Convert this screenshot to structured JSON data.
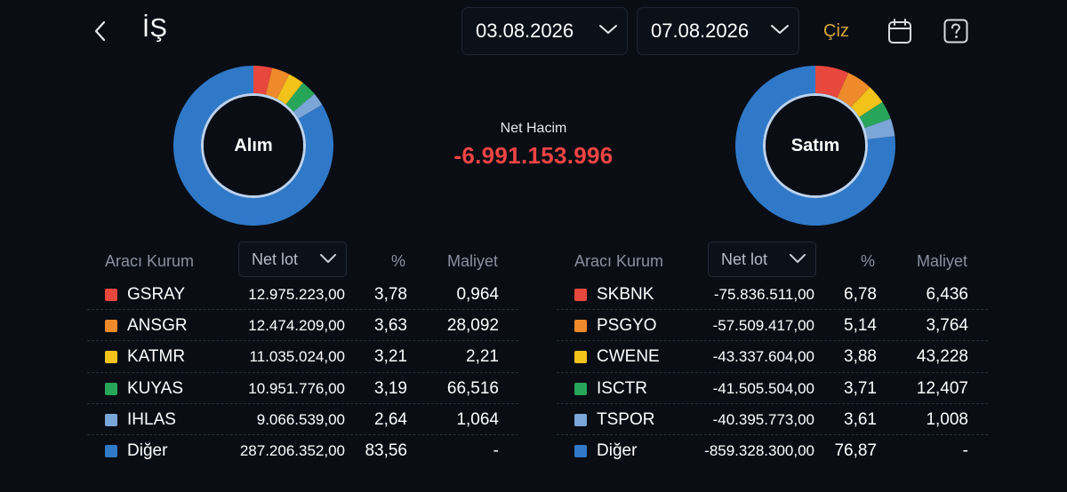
{
  "header": {
    "title": "İŞ",
    "start_date": "03.08.2026",
    "end_date": "07.08.2026",
    "draw_label": "Çiz"
  },
  "summary": {
    "net_label": "Net Hacim",
    "net_value": "-6.991.153.996"
  },
  "colors": {
    "red": "#e8473d",
    "orange": "#ee8a2a",
    "yellow": "#f3c21b",
    "green": "#27a65a",
    "lightblue": "#7aa6d8",
    "blue": "#2f79c8",
    "negative": "#ef4444",
    "accent": "#d9a53a"
  },
  "buy": {
    "donut_label": "Alım",
    "columns": {
      "broker": "Aracı Kurum",
      "lot": "Net lot",
      "pct": "%",
      "cost": "Maliyet"
    },
    "rows": [
      {
        "name": "GSRAY",
        "lot": "12.975.223,00",
        "pct": "3,78",
        "cost": "0,964",
        "color": "#e8473d",
        "share": 3.78
      },
      {
        "name": "ANSGR",
        "lot": "12.474.209,00",
        "pct": "3,63",
        "cost": "28,092",
        "color": "#ee8a2a",
        "share": 3.63
      },
      {
        "name": "KATMR",
        "lot": "11.035.024,00",
        "pct": "3,21",
        "cost": "2,21",
        "color": "#f3c21b",
        "share": 3.21
      },
      {
        "name": "KUYAS",
        "lot": "10.951.776,00",
        "pct": "3,19",
        "cost": "66,516",
        "color": "#27a65a",
        "share": 3.19
      },
      {
        "name": "IHLAS",
        "lot": "9.066.539,00",
        "pct": "2,64",
        "cost": "1,064",
        "color": "#7aa6d8",
        "share": 2.64
      },
      {
        "name": "Diğer",
        "lot": "287.206.352,00",
        "pct": "83,56",
        "cost": "-",
        "color": "#2f79c8",
        "share": 83.56
      }
    ]
  },
  "sell": {
    "donut_label": "Satım",
    "columns": {
      "broker": "Aracı Kurum",
      "lot": "Net lot",
      "pct": "%",
      "cost": "Maliyet"
    },
    "rows": [
      {
        "name": "SKBNK",
        "lot": "-75.836.511,00",
        "pct": "6,78",
        "cost": "6,436",
        "color": "#e8473d",
        "share": 6.78
      },
      {
        "name": "PSGYO",
        "lot": "-57.509.417,00",
        "pct": "5,14",
        "cost": "3,764",
        "color": "#ee8a2a",
        "share": 5.14
      },
      {
        "name": "CWENE",
        "lot": "-43.337.604,00",
        "pct": "3,88",
        "cost": "43,228",
        "color": "#f3c21b",
        "share": 3.88
      },
      {
        "name": "ISCTR",
        "lot": "-41.505.504,00",
        "pct": "3,71",
        "cost": "12,407",
        "color": "#27a65a",
        "share": 3.71
      },
      {
        "name": "TSPOR",
        "lot": "-40.395.773,00",
        "pct": "3,61",
        "cost": "1,008",
        "color": "#7aa6d8",
        "share": 3.61
      },
      {
        "name": "Diğer",
        "lot": "-859.328.300,00",
        "pct": "76,87",
        "cost": "-",
        "color": "#2f79c8",
        "share": 76.87
      }
    ]
  }
}
